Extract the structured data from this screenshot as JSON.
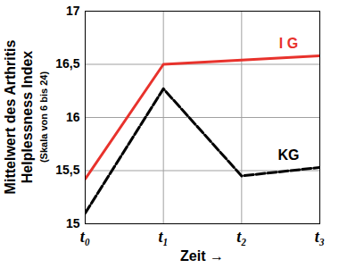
{
  "chart_data": {
    "type": "line",
    "y_label": "Mittelwert des Arthritis Helplessness Index",
    "y_label_note": "(Skala von 6 bis 24)",
    "x_label": "Zeit →",
    "categories": [
      "t₀",
      "t₁",
      "t₂",
      "t₃"
    ],
    "series": [
      {
        "name": "I G",
        "color": "#e8322c",
        "line_style": "solid",
        "values": [
          15.42,
          16.5,
          16.54,
          16.58
        ]
      },
      {
        "name": "KG",
        "color": "#000000",
        "line_style": "dashed",
        "values": [
          15.1,
          16.27,
          15.45,
          15.53
        ]
      }
    ],
    "ylim": [
      15,
      17
    ],
    "yticks": [
      15,
      {
        "value": 15.5,
        "label": "15,5"
      },
      16,
      {
        "value": 16.5,
        "label": "16,5"
      },
      17
    ],
    "grid": true
  }
}
